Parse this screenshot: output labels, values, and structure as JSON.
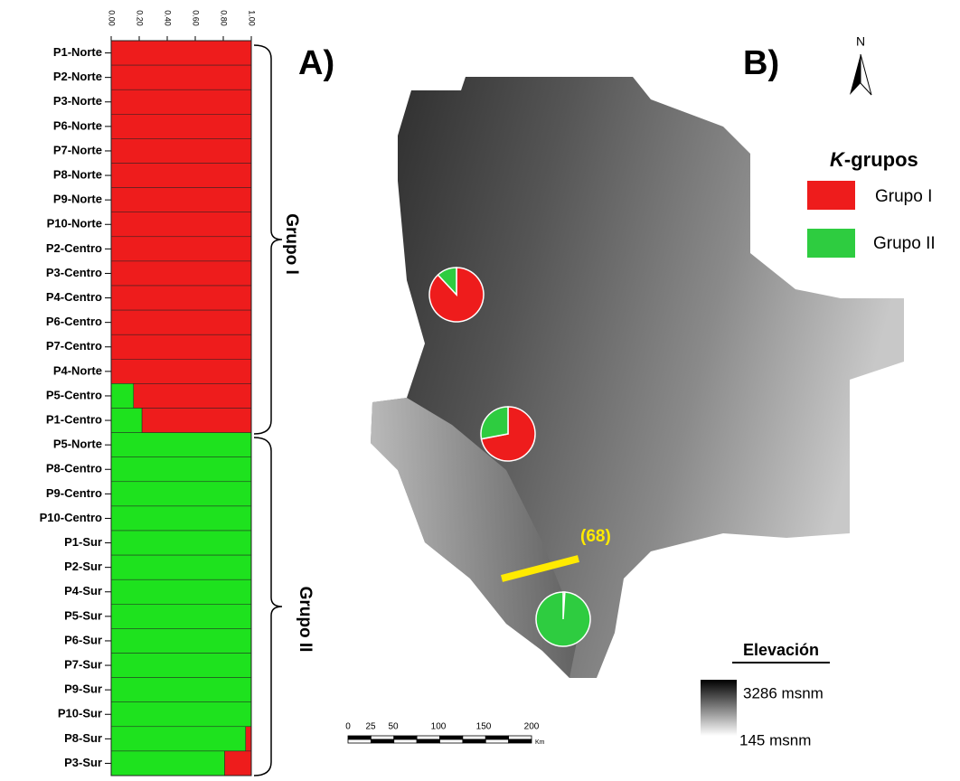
{
  "chart_data": {
    "type": "bar",
    "orientation": "horizontal",
    "stacked": true,
    "categories": [
      "P1-Norte",
      "P2-Norte",
      "P3-Norte",
      "P6-Norte",
      "P7-Norte",
      "P8-Norte",
      "P9-Norte",
      "P10-Norte",
      "P2-Centro",
      "P3-Centro",
      "P4-Centro",
      "P6-Centro",
      "P7-Centro",
      "P4-Norte",
      "P5-Centro",
      "P1-Centro",
      "P5-Norte",
      "P8-Centro",
      "P9-Centro",
      "P10-Centro",
      "P1-Sur",
      "P2-Sur",
      "P4-Sur",
      "P5-Sur",
      "P6-Sur",
      "P7-Sur",
      "P9-Sur",
      "P10-Sur",
      "P8-Sur",
      "P3-Sur"
    ],
    "series": [
      {
        "name": "Grupo I",
        "color": "#ee1c1c",
        "values": [
          1,
          1,
          1,
          1,
          1,
          1,
          1,
          1,
          1,
          1,
          1,
          1,
          1,
          1,
          0.84,
          0.78,
          0,
          0,
          0,
          0,
          0,
          0,
          0,
          0,
          0,
          0,
          0,
          0,
          0.04,
          0.19
        ]
      },
      {
        "name": "Grupo II",
        "color": "#1ee21e",
        "values": [
          0,
          0,
          0,
          0,
          0,
          0,
          0,
          0,
          0,
          0,
          0,
          0,
          0,
          0,
          0.16,
          0.22,
          1,
          1,
          1,
          1,
          1,
          1,
          1,
          1,
          1,
          1,
          1,
          1,
          0.96,
          0.81
        ]
      }
    ],
    "xlim": [
      0,
      1
    ],
    "xticks": [
      {
        "value": 0,
        "label": "0.00"
      },
      {
        "value": 0.2,
        "label": "0.20"
      },
      {
        "value": 0.4,
        "label": "0.40"
      },
      {
        "value": 0.6,
        "label": "0.60"
      },
      {
        "value": 0.8,
        "label": "0.80"
      },
      {
        "value": 1,
        "label": "1.00"
      }
    ],
    "annotations": {
      "panel": "A)",
      "group1": "Grupo I",
      "group2": "Grupo II"
    }
  },
  "map": {
    "panel": "B)",
    "north": "N",
    "legend_title_italic": "K",
    "legend_title_rest": "-grupos",
    "pies": [
      {
        "values": [
          88,
          12
        ]
      },
      {
        "values": [
          72,
          28
        ]
      },
      {
        "values": [
          1,
          99
        ]
      }
    ],
    "barrier_label": "(68)",
    "elevation_title": "Elevación",
    "elevation_max": "3286 msnm",
    "elevation_min": "145 msnm",
    "scale_labels": [
      "0",
      "25",
      "50",
      "100",
      "150",
      "200"
    ],
    "scale_unit": "Km"
  }
}
